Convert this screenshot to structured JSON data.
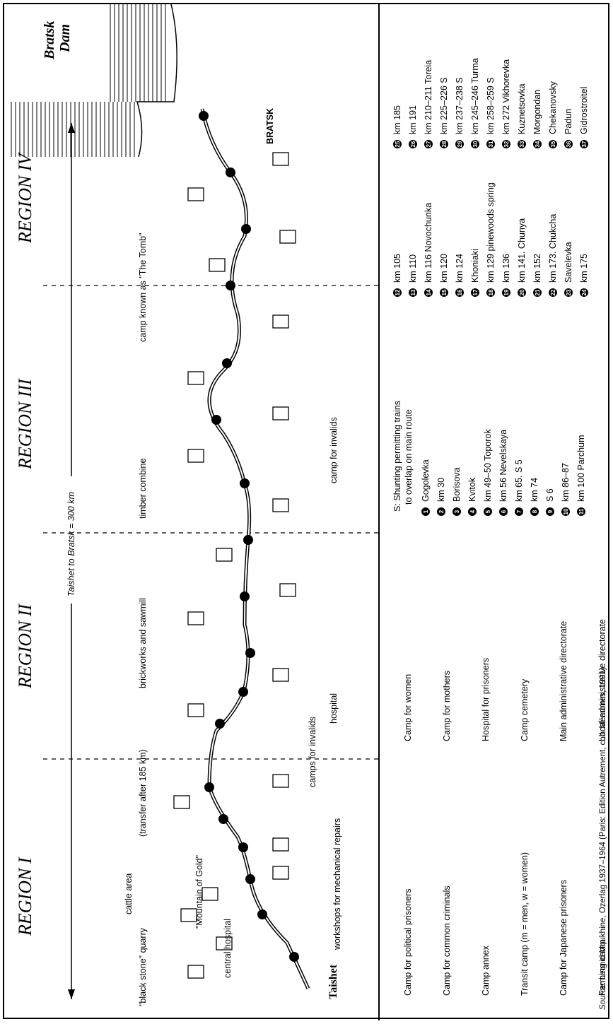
{
  "map": {
    "regions": [
      "REGION I",
      "REGION II",
      "REGION III",
      "REGION IV"
    ],
    "distance_label": "Taishet to Bratsk = 300 km",
    "dam_label_1": "Bratsk",
    "dam_label_2": "Dam",
    "labels": {
      "cattle_area": "cattle area",
      "mountain_of_gold": "\"Mountain of Gold\"",
      "central_hospital": "central hospital",
      "black_stone_quarry": "\"black stone\" quarry",
      "taishet": "Taishet",
      "workshops": "workshops for mechanical repairs",
      "transfer": "(transfer after 185 km)",
      "camps_for_invalids": "camps for invalids",
      "brickworks": "brickworks and sawmill",
      "hospital": "hospital",
      "timber_combine": "timber combine",
      "camp_for_invalids": "camp for invalids",
      "the_tomb": "camp known as \"The Tomb\"",
      "bratsk": "BRATSK"
    }
  },
  "legend": {
    "symbols": [
      "Camp for political prisoners",
      "Camp for common criminals",
      "Camp annex",
      "Transit camp (m = men, w = women)",
      "Camp for Japanese prisoners",
      "Farming camp",
      "Camp for women",
      "Camp for mothers",
      "Hospital for prisoners",
      "Camp cemetery",
      "Main administrative directorate",
      "Local administrative directorate"
    ],
    "shunting_note_1": "S: Shunting permitting trains",
    "shunting_note_2": "to overlap on main route",
    "stations": [
      {
        "n": "1",
        "label": "Gogolevka"
      },
      {
        "n": "2",
        "label": "km 30"
      },
      {
        "n": "3",
        "label": "Borisova"
      },
      {
        "n": "4",
        "label": "Kvitok"
      },
      {
        "n": "5",
        "label": "km 49–50 Toporok"
      },
      {
        "n": "6",
        "label": "km 56 Nevelskaya"
      },
      {
        "n": "7",
        "label": "km 65. S 5"
      },
      {
        "n": "8",
        "label": "km 74"
      },
      {
        "n": "9",
        "label": "S 6"
      },
      {
        "n": "10",
        "label": "km 86–87"
      },
      {
        "n": "11",
        "label": "km 100 Parchum"
      },
      {
        "n": "12",
        "label": "km 105"
      },
      {
        "n": "13",
        "label": "km 110"
      },
      {
        "n": "14",
        "label": "km 116 Novochunka"
      },
      {
        "n": "15",
        "label": "km 120"
      },
      {
        "n": "16",
        "label": "km 124"
      },
      {
        "n": "17",
        "label": "Khoniaki"
      },
      {
        "n": "18",
        "label": "km 129 pinewoods spring"
      },
      {
        "n": "19",
        "label": "km 136"
      },
      {
        "n": "20",
        "label": "km 141. Chunya"
      },
      {
        "n": "21",
        "label": "km 152"
      },
      {
        "n": "22",
        "label": "km 173. Chukcha"
      },
      {
        "n": "23",
        "label": "Savelevka"
      },
      {
        "n": "24",
        "label": "km 175"
      },
      {
        "n": "25",
        "label": "km 185"
      },
      {
        "n": "26",
        "label": "km 191"
      },
      {
        "n": "27",
        "label": "km 210–211 Toreia"
      },
      {
        "n": "28",
        "label": "km 225–226 S"
      },
      {
        "n": "29",
        "label": "km 237–238 S"
      },
      {
        "n": "30",
        "label": "km 245–246 Turma"
      },
      {
        "n": "31",
        "label": "km 258–259 S"
      },
      {
        "n": "32",
        "label": "km 272 Vikhorevka"
      },
      {
        "n": "33",
        "label": "Kuznetsovka"
      },
      {
        "n": "34",
        "label": "Morgondan"
      },
      {
        "n": "35",
        "label": "Chekanovsky"
      },
      {
        "n": "36",
        "label": "Padun"
      },
      {
        "n": "37",
        "label": "Gidrostroitel"
      }
    ]
  },
  "source": {
    "prefix": "Source:",
    "text": " Leonid Moukhine, Ozerlag 1937–1964 (Paris: Edition Autrement, coll. Mémoires, 1991)"
  }
}
